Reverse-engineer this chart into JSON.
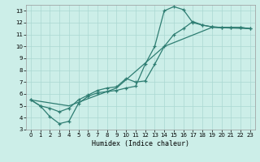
{
  "xlabel": "Humidex (Indice chaleur)",
  "background_color": "#cceee8",
  "grid_color": "#aad8d2",
  "line_color": "#2e7d72",
  "xlim": [
    -0.5,
    23.5
  ],
  "ylim": [
    3,
    13.5
  ],
  "xticks": [
    0,
    1,
    2,
    3,
    4,
    5,
    6,
    7,
    8,
    9,
    10,
    11,
    12,
    13,
    14,
    15,
    16,
    17,
    18,
    19,
    20,
    21,
    22,
    23
  ],
  "yticks": [
    3,
    4,
    5,
    6,
    7,
    8,
    9,
    10,
    11,
    12,
    13
  ],
  "line1_x": [
    0,
    1,
    2,
    3,
    4,
    5,
    6,
    7,
    8,
    9,
    10,
    11,
    12,
    13,
    14,
    15,
    16,
    17,
    18,
    19,
    20,
    21,
    22,
    23
  ],
  "line1_y": [
    5.5,
    5.0,
    4.1,
    3.5,
    3.7,
    5.2,
    5.8,
    6.1,
    6.2,
    6.3,
    6.5,
    6.65,
    8.5,
    10.0,
    13.0,
    13.35,
    13.1,
    12.0,
    11.8,
    11.65,
    11.6,
    11.6,
    11.6,
    11.5
  ],
  "line2_x": [
    0,
    1,
    2,
    3,
    4,
    5,
    6,
    7,
    8,
    9,
    10,
    11,
    12,
    13,
    14,
    15,
    16,
    17,
    18,
    19,
    20,
    21,
    22,
    23
  ],
  "line2_y": [
    5.5,
    5.0,
    4.8,
    4.5,
    4.8,
    5.5,
    5.9,
    6.3,
    6.5,
    6.6,
    7.3,
    7.0,
    7.1,
    8.5,
    10.0,
    11.0,
    11.5,
    12.1,
    11.8,
    11.65,
    11.6,
    11.6,
    11.6,
    11.5
  ],
  "line3_x": [
    0,
    4,
    9,
    14,
    19,
    23
  ],
  "line3_y": [
    5.5,
    5.0,
    6.5,
    10.0,
    11.6,
    11.5
  ]
}
